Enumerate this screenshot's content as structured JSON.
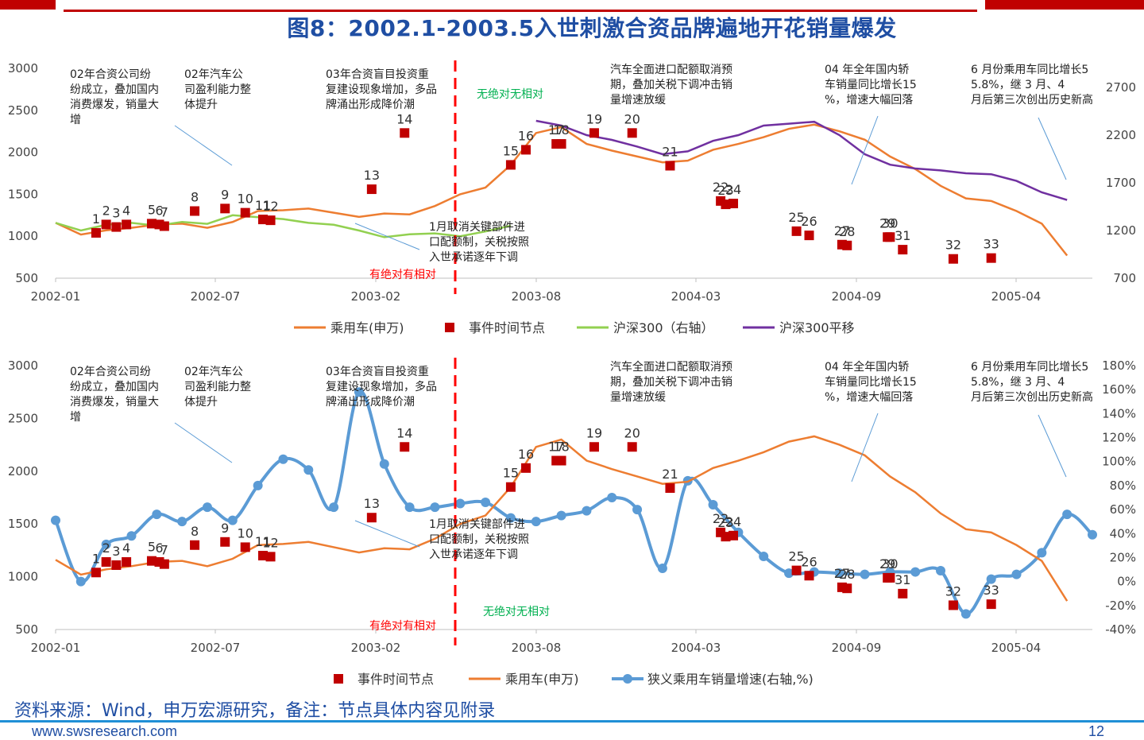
{
  "header": {
    "title": "图8：2002.1-2003.5入世刺激合资品牌遍地开花销量爆发"
  },
  "source": {
    "text": "资料来源：Wind，申万宏源研究，备注：节点具体内容见附录"
  },
  "footer": {
    "url": "www.swsresearch.com",
    "page": "12"
  },
  "colors": {
    "title": "#1f4ea3",
    "orange": "#ed7d31",
    "event_red": "#c00000",
    "green": "#92d050",
    "purple": "#7030a0",
    "blue": "#5b9bd5",
    "dash_red": "#ff0000",
    "phase_red": "#ff0000",
    "phase_green": "#00b050"
  },
  "chart_data": [
    {
      "type": "line",
      "x_ticks": [
        "2002-01",
        "2002-07",
        "2003-02",
        "2003-08",
        "2004-03",
        "2004-09",
        "2005-04"
      ],
      "ylim": [
        500,
        3000
      ],
      "y_ticks": [
        "3000",
        "2500",
        "2000",
        "1500",
        "1000",
        "500"
      ],
      "y2lim": [
        700,
        2900
      ],
      "y2_ticks": [
        "2700",
        "2200",
        "1700",
        "1200",
        "700"
      ],
      "legend": [
        "乘用车(申万)",
        "事件时间节点",
        "沪深300（右轴）",
        "沪深300平移"
      ],
      "series": [
        {
          "name": "乘用车(申万)",
          "axis": "left",
          "x": [
            0,
            1,
            2,
            3,
            4,
            5,
            6,
            7,
            8,
            9,
            10,
            11,
            12,
            13,
            14,
            15,
            16,
            17,
            18,
            19,
            20,
            21,
            22,
            23,
            24,
            25,
            26,
            27,
            28,
            29,
            30,
            31,
            32,
            33,
            34,
            35,
            36,
            37,
            38,
            39,
            40
          ],
          "y": [
            1160,
            1020,
            1070,
            1100,
            1140,
            1150,
            1100,
            1170,
            1300,
            1310,
            1330,
            1280,
            1230,
            1270,
            1260,
            1360,
            1500,
            1580,
            1850,
            2230,
            2300,
            2100,
            2020,
            1950,
            1880,
            1900,
            2030,
            2100,
            2180,
            2280,
            2330,
            2250,
            2150,
            1950,
            1800,
            1600,
            1450,
            1420,
            1300,
            1150,
            770
          ]
        },
        {
          "name": "沪深300（右轴）",
          "axis": "right",
          "x": [
            0,
            1,
            2,
            3,
            4,
            5,
            6,
            7,
            8,
            9,
            10,
            11,
            12,
            13,
            14,
            15,
            16,
            17,
            18
          ],
          "y": [
            1280,
            1200,
            1260,
            1280,
            1250,
            1290,
            1270,
            1360,
            1340,
            1320,
            1280,
            1260,
            1200,
            1130,
            1160,
            1170,
            1140,
            1190,
            1250
          ]
        },
        {
          "name": "沪深300平移",
          "axis": "right",
          "x": [
            19,
            20,
            21,
            22,
            23,
            24,
            25,
            26,
            27,
            28,
            29,
            30,
            31,
            32,
            33,
            34,
            35,
            36,
            37,
            38,
            39,
            40
          ],
          "y": [
            2350,
            2300,
            2200,
            2150,
            2080,
            2000,
            2030,
            2140,
            2200,
            2300,
            2320,
            2340,
            2200,
            2000,
            1890,
            1850,
            1830,
            1800,
            1790,
            1720,
            1600,
            1520
          ]
        }
      ],
      "events": [
        {
          "label": "1",
          "x": 1.6,
          "y": 1040
        },
        {
          "label": "2",
          "x": 2.0,
          "y": 1140
        },
        {
          "label": "3",
          "x": 2.4,
          "y": 1110
        },
        {
          "label": "4",
          "x": 2.8,
          "y": 1140
        },
        {
          "label": "5",
          "x": 3.8,
          "y": 1150
        },
        {
          "label": "6",
          "x": 4.1,
          "y": 1140
        },
        {
          "label": "7",
          "x": 4.3,
          "y": 1120
        },
        {
          "label": "8",
          "x": 5.5,
          "y": 1300
        },
        {
          "label": "9",
          "x": 6.7,
          "y": 1330
        },
        {
          "label": "10",
          "x": 7.5,
          "y": 1280
        },
        {
          "label": "11",
          "x": 8.2,
          "y": 1200
        },
        {
          "label": "12",
          "x": 8.5,
          "y": 1190
        },
        {
          "label": "13",
          "x": 12.5,
          "y": 1560
        },
        {
          "label": "14",
          "x": 13.8,
          "y": 2230
        },
        {
          "label": "15",
          "x": 18.0,
          "y": 1850
        },
        {
          "label": "16",
          "x": 18.6,
          "y": 2030
        },
        {
          "label": "17",
          "x": 19.8,
          "y": 2100
        },
        {
          "label": "18",
          "x": 20.0,
          "y": 2100
        },
        {
          "label": "19",
          "x": 21.3,
          "y": 2230
        },
        {
          "label": "20",
          "x": 22.8,
          "y": 2230
        },
        {
          "label": "21",
          "x": 24.3,
          "y": 1840
        },
        {
          "label": "22",
          "x": 26.3,
          "y": 1420
        },
        {
          "label": "23",
          "x": 26.5,
          "y": 1380
        },
        {
          "label": "24",
          "x": 26.8,
          "y": 1390
        },
        {
          "label": "25",
          "x": 29.3,
          "y": 1060
        },
        {
          "label": "26",
          "x": 29.8,
          "y": 1010
        },
        {
          "label": "27",
          "x": 31.1,
          "y": 900
        },
        {
          "label": "28",
          "x": 31.3,
          "y": 890
        },
        {
          "label": "29",
          "x": 32.9,
          "y": 990
        },
        {
          "label": "30",
          "x": 33.0,
          "y": 990
        },
        {
          "label": "31",
          "x": 33.5,
          "y": 840
        },
        {
          "label": "32",
          "x": 35.5,
          "y": 730
        },
        {
          "label": "33",
          "x": 37.0,
          "y": 740
        }
      ],
      "annotations": [
        "02年合资公司纷纷成立，叠加国内消费爆发，销量大增",
        "02年汽车公司盈利能力整体提升",
        "03年合资盲目投资重复建设现象增加，多品牌涌出形成降价潮",
        "汽车全面进口配额取消预期，叠加关税下调冲击销量增速放缓",
        "04 年全年国内轿车销量同比增长15%，增速大幅回落",
        "6 月份乘用车同比增长55.8%，继 3 月、4 月后第三次创出历史新高",
        "1月取消关键部件进口配额制，关税按照入世承诺逐年下调",
        "无绝对无相对",
        "有绝对有相对"
      ]
    },
    {
      "type": "line",
      "x_ticks": [
        "2002-01",
        "2002-07",
        "2003-02",
        "2003-08",
        "2004-03",
        "2004-09",
        "2005-04"
      ],
      "ylim": [
        500,
        3000
      ],
      "y_ticks": [
        "3000",
        "2500",
        "2000",
        "1500",
        "1000",
        "500"
      ],
      "y2lim": [
        -40,
        180
      ],
      "y2_ticks": [
        "180%",
        "160%",
        "140%",
        "120%",
        "100%",
        "80%",
        "60%",
        "40%",
        "20%",
        "0%",
        "-20%",
        "-40%"
      ],
      "legend": [
        "事件时间节点",
        "乘用车(申万)",
        "狭义乘用车销量增速(右轴,%)"
      ],
      "series": [
        {
          "name": "狭义乘用车销量增速(右轴,%)",
          "axis": "right",
          "x": [
            0,
            1,
            2,
            3,
            4,
            5,
            6,
            7,
            8,
            9,
            10,
            11,
            12,
            13,
            14,
            15,
            16,
            17,
            18,
            19,
            20,
            21,
            22,
            23,
            24,
            25,
            26,
            27,
            28,
            29,
            30,
            31,
            32,
            33,
            34,
            35,
            36,
            37,
            38,
            39,
            40,
            41
          ],
          "y": [
            51,
            0,
            31,
            38,
            56,
            50,
            62,
            51,
            80,
            102,
            93,
            62,
            158,
            98,
            62,
            62,
            65,
            66,
            53,
            50,
            55,
            59,
            70,
            60,
            11,
            84,
            64,
            41,
            21,
            7,
            8,
            7,
            6,
            8,
            8,
            9,
            -27,
            2,
            6,
            24,
            56,
            39
          ]
        }
      ]
    }
  ]
}
